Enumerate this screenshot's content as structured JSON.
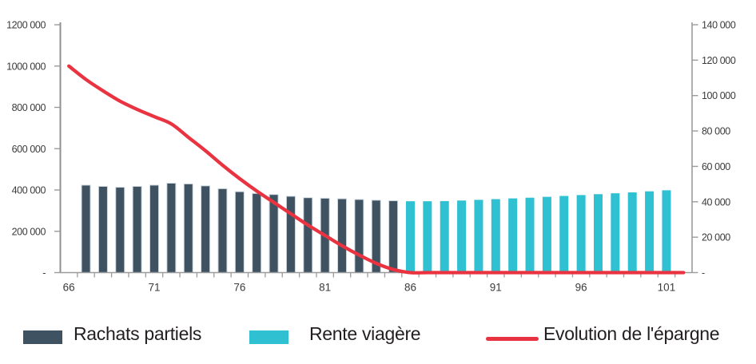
{
  "chart_data": {
    "type": "combo",
    "title": "",
    "xlabel": "",
    "ylabel_left": "",
    "ylabel_right": "",
    "x_range": [
      66,
      102
    ],
    "x_tick_ages": [
      66,
      71,
      76,
      81,
      86,
      91,
      96,
      101
    ],
    "x_tick_labels": [
      "66",
      "71",
      "76",
      "81",
      "86",
      "91",
      "96",
      "101"
    ],
    "left_axis": {
      "min": 0,
      "max": 1200000,
      "ticks": [
        {
          "label": "1200 000",
          "value": 1200000
        },
        {
          "label": "1000 000",
          "value": 1000000
        },
        {
          "label": "800 000",
          "value": 800000
        },
        {
          "label": "600 000",
          "value": 600000
        },
        {
          "label": "400 000",
          "value": 400000
        },
        {
          "label": "200 000",
          "value": 200000
        },
        {
          "label": " -",
          "value": 0
        }
      ]
    },
    "right_axis": {
      "min": 0,
      "max": 140000,
      "ticks": [
        {
          "label": "140 000",
          "value": 140000
        },
        {
          "label": "120 000",
          "value": 120000
        },
        {
          "label": "100 000",
          "value": 100000
        },
        {
          "label": "80 000",
          "value": 80000
        },
        {
          "label": "60 000",
          "value": 60000
        },
        {
          "label": "40 000",
          "value": 40000
        },
        {
          "label": "20 000",
          "value": 20000
        },
        {
          "label": " -",
          "value": 0
        }
      ]
    },
    "series": [
      {
        "name": "Rachats partiels",
        "type": "bar",
        "axis": "right",
        "color": "#3e5262",
        "edge_color": "#ccd6dd",
        "ages": [
          67,
          68,
          69,
          70,
          71,
          72,
          73,
          74,
          75,
          76,
          77,
          78,
          79,
          80,
          81,
          82,
          83,
          84,
          85
        ],
        "values": [
          49400,
          48700,
          48200,
          48700,
          49400,
          50500,
          50100,
          49000,
          47400,
          45700,
          44700,
          44100,
          43100,
          42300,
          42000,
          41700,
          41300,
          40900,
          40600
        ]
      },
      {
        "name": "Rente viagère",
        "type": "bar",
        "axis": "right",
        "color": "#2fc0d1",
        "ages": [
          86,
          87,
          88,
          89,
          90,
          91,
          92,
          93,
          94,
          95,
          96,
          97,
          98,
          99,
          100,
          101
        ],
        "values": [
          40300,
          40300,
          40400,
          40700,
          41100,
          41500,
          41900,
          42300,
          42800,
          43300,
          43800,
          44300,
          44800,
          45300,
          45900,
          46500
        ]
      },
      {
        "name": "Evolution de l'épargne",
        "type": "line",
        "axis": "left",
        "color": "#ea3340",
        "ages": [
          66,
          67,
          68,
          69,
          70,
          71,
          72,
          73,
          74,
          75,
          76,
          77,
          78,
          79,
          80,
          81,
          82,
          83,
          84,
          85,
          86,
          87,
          88,
          89,
          90,
          91,
          92,
          93,
          94,
          95,
          96,
          97,
          98,
          99,
          100,
          101,
          102
        ],
        "values": [
          1000000,
          935000,
          880000,
          830000,
          790000,
          755000,
          720000,
          655000,
          590000,
          520000,
          455000,
          395000,
          340000,
          285000,
          230000,
          180000,
          130000,
          85000,
          45000,
          15000,
          0,
          0,
          0,
          0,
          0,
          0,
          0,
          0,
          0,
          0,
          0,
          0,
          0,
          0,
          0,
          0,
          0
        ]
      }
    ],
    "legend_position": "bottom",
    "grid": false,
    "axis_color": "#9b9b9b",
    "tick_label_color": "#3b3b3b"
  }
}
